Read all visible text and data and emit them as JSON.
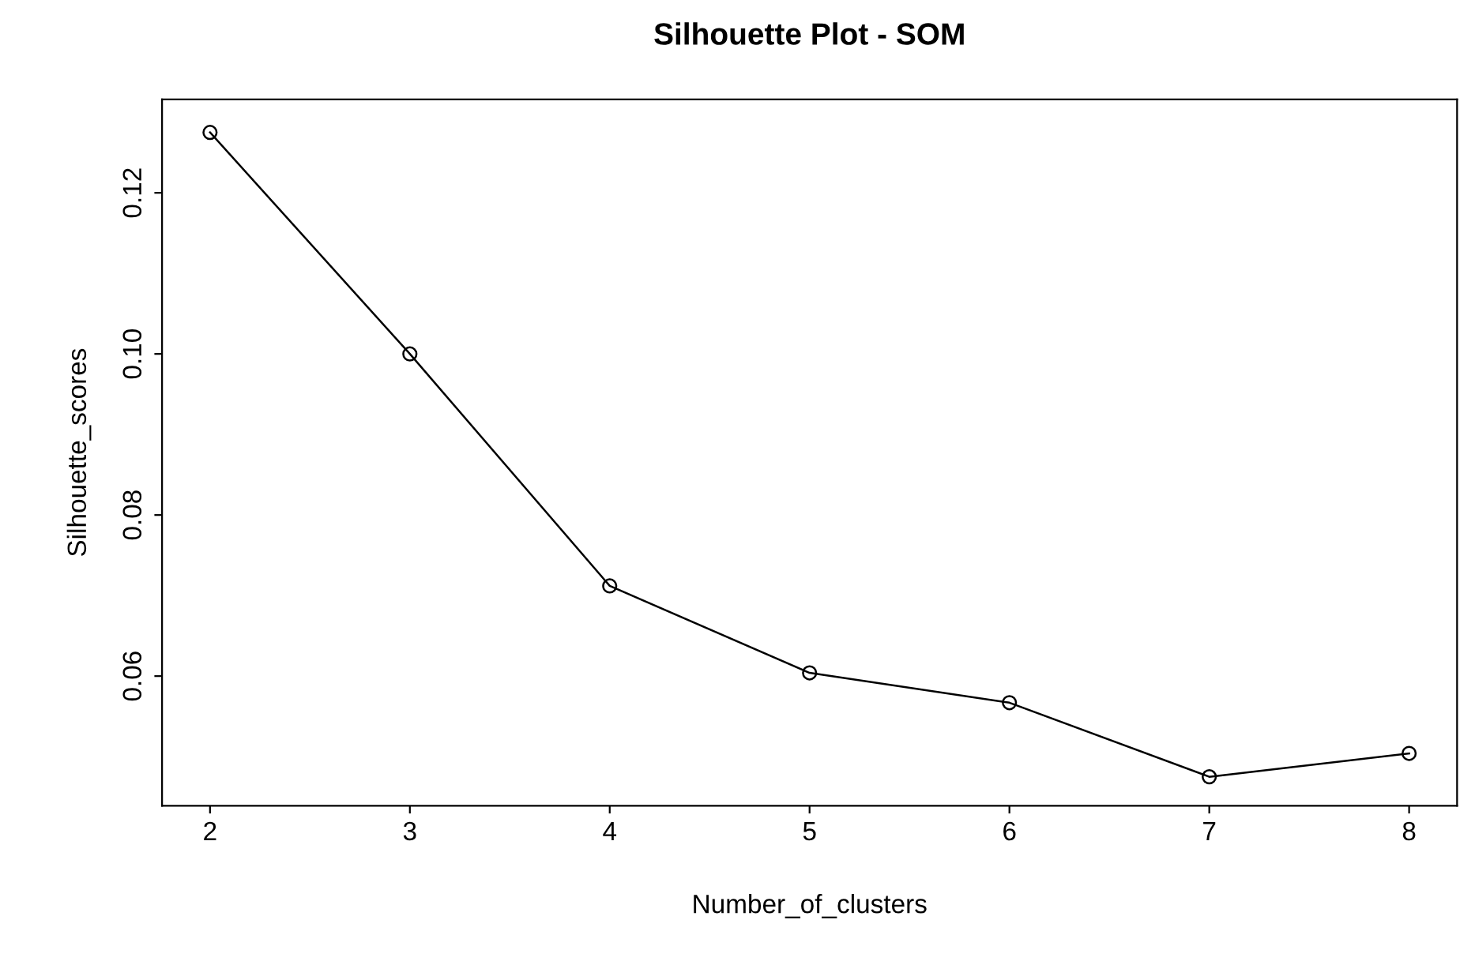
{
  "chart_data": {
    "type": "line",
    "title": "Silhouette Plot - SOM",
    "xlabel": "Number_of_clusters",
    "ylabel": "Silhouette_scores",
    "x": [
      2,
      3,
      4,
      5,
      6,
      7,
      8
    ],
    "series": [
      {
        "color": "#000000",
        "values": [
          0.1275,
          0.1,
          0.0712,
          0.0604,
          0.0567,
          0.0475,
          0.0504
        ]
      }
    ],
    "xlim": [
      1.76,
      8.24
    ],
    "ylim": [
      0.0439,
      0.1316
    ],
    "xticks": [
      2,
      3,
      4,
      5,
      6,
      7,
      8
    ],
    "yticks": [
      0.06,
      0.08,
      {
        "value": 0.1,
        "label": "0.10"
      },
      0.12
    ],
    "marker": "circle",
    "line_style": "solid",
    "grid": false,
    "legend": false
  }
}
